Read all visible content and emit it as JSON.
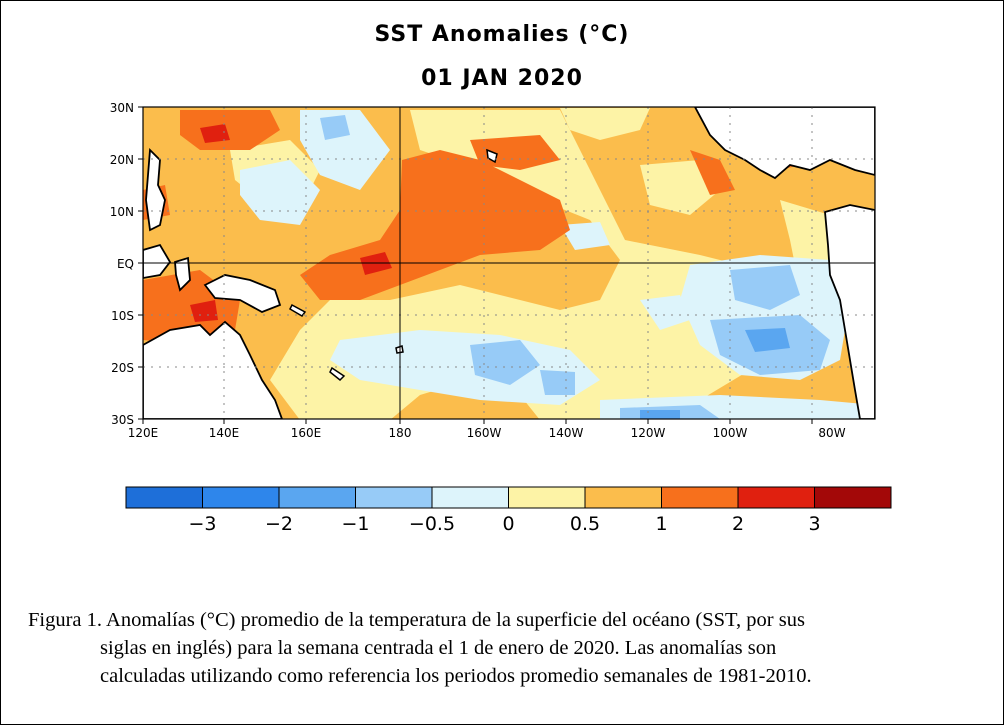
{
  "figure": {
    "title": "SST Anomalies (°C)",
    "date": "01 JAN 2020",
    "caption": {
      "lead": "Figura 1. Anomalías (°C) promedio de la temperatura de la superficie del océano (SST, por sus",
      "line2": "siglas en inglés) para la semana centrada el 1 de enero de 2020. Las anomalías son",
      "line3": "calculadas utilizando como referencia los periodos promedio semanales de 1981-2010."
    }
  },
  "map": {
    "lat_labels": [
      "30N",
      "20N",
      "10N",
      "EQ",
      "10S",
      "20S",
      "30S"
    ],
    "lon_labels": [
      "120E",
      "140E",
      "160E",
      "180",
      "160W",
      "140W",
      "120W",
      "100W",
      "80W"
    ],
    "land_color": "#ffffff",
    "grid": "dotted"
  },
  "colorbar": {
    "tick_labels": [
      "−3",
      "−2",
      "−1",
      "−0.5",
      "0",
      "0.5",
      "1",
      "2",
      "3"
    ],
    "colors": [
      "#1e6fd9",
      "#2e86eb",
      "#5aa6f0",
      "#97cbf7",
      "#ddf4fb",
      "#fdf3a6",
      "#fbbd4c",
      "#f7701c",
      "#e0200f",
      "#a30808"
    ]
  }
}
